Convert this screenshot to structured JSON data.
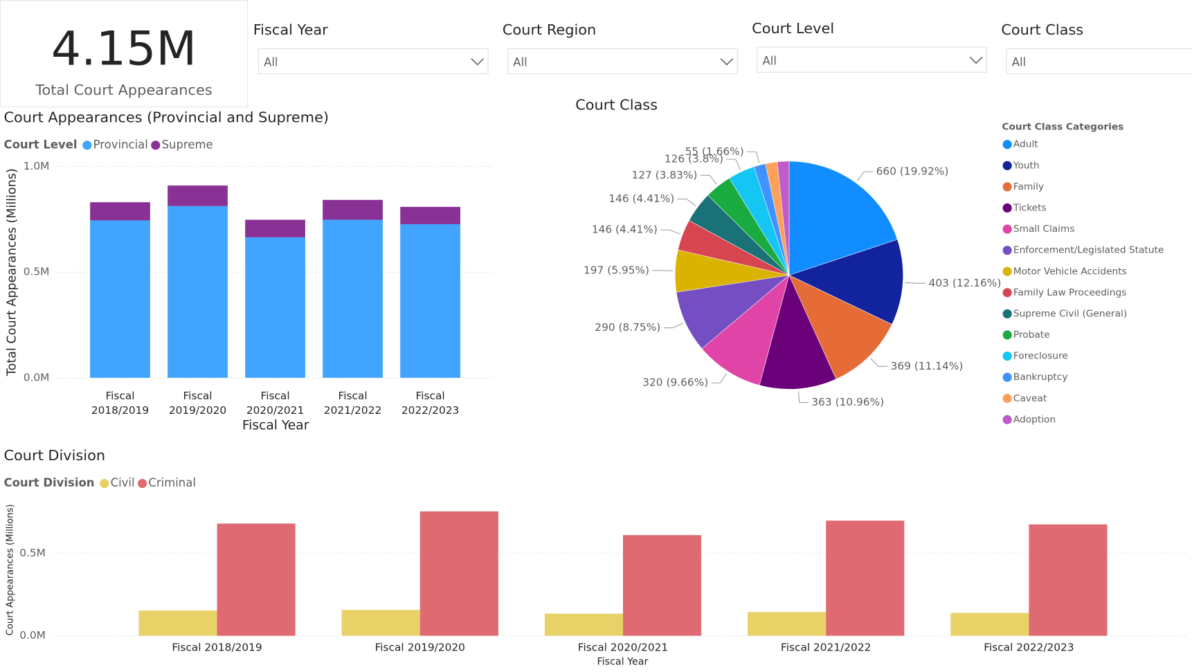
{
  "kpi": {
    "value": "4.15M",
    "label": "Total Court Appearances"
  },
  "slicers": [
    {
      "title": "Fiscal Year",
      "selection": "All"
    },
    {
      "title": "Court Region",
      "selection": "All"
    },
    {
      "title": "Court Level",
      "selection": "All"
    },
    {
      "title": "Court Class",
      "selection": "All"
    }
  ],
  "chart_data": [
    {
      "type": "bar",
      "stacked": true,
      "title": "Court Appearances (Provincial and Supreme)",
      "legend_title": "Court Level",
      "y_label": "Total Court Appearances (Millions)",
      "x_label": "Fiscal Year",
      "categories": [
        "Fiscal 2018/2019",
        "Fiscal 2019/2020",
        "Fiscal 2020/2021",
        "Fiscal 2021/2022",
        "Fiscal 2022/2023"
      ],
      "series": [
        {
          "name": "Provincial",
          "color": "#41a4ff",
          "values": [
            0.745,
            0.813,
            0.665,
            0.748,
            0.727
          ]
        },
        {
          "name": "Supreme",
          "color": "#8a3196",
          "values": [
            0.086,
            0.097,
            0.083,
            0.094,
            0.082
          ]
        }
      ],
      "ylim": [
        0,
        1.0
      ],
      "yticks": [
        {
          "value": 0,
          "label": "0.0M"
        },
        {
          "value": 0.5,
          "label": "0.5M"
        },
        {
          "value": 1.0,
          "label": "1.0M"
        }
      ],
      "grid": true
    },
    {
      "type": "pie",
      "title": "Court Class",
      "legend_title": "Court Class Categories",
      "categories": [
        "Adult",
        "Youth",
        "Family",
        "Tickets",
        "Small Claims",
        "Enforcement/Legislated Statute",
        "Motor Vehicle Accidents",
        "Family Law Proceedings",
        "Supreme Civil (General)",
        "Probate",
        "Foreclosure",
        "Bankruptcy",
        "Caveat",
        "Adoption"
      ],
      "values": [
        660,
        403,
        369,
        363,
        320,
        290,
        197,
        146,
        146,
        127,
        126,
        55,
        55,
        55
      ],
      "value_labels": [
        "660 (19.92%)",
        "403 (12.16%)",
        "369 (11.14%)",
        "363 (10.96%)",
        "320 (9.66%)",
        "290 (8.75%)",
        "197 (5.95%)",
        "146 (4.41%)",
        "146 (4.41%)",
        "127 (3.83%)",
        "126 (3.8%)",
        "55 (1.66%)",
        null,
        null
      ],
      "colors": [
        "#118dff",
        "#12239e",
        "#e66c37",
        "#6b007b",
        "#e044a7",
        "#744ec2",
        "#d9b300",
        "#d64550",
        "#197278",
        "#1aab40",
        "#15c6f4",
        "#4092ff",
        "#ffa058",
        "#be5dc9"
      ]
    },
    {
      "type": "bar",
      "stacked": false,
      "title": "Court Division",
      "legend_title": "Court Division",
      "y_label": "Court Appearances (Millions)",
      "x_label": "Fiscal Year",
      "categories": [
        "Fiscal 2018/2019",
        "Fiscal 2019/2020",
        "Fiscal 2020/2021",
        "Fiscal 2021/2022",
        "Fiscal 2022/2023"
      ],
      "series": [
        {
          "name": "Civil",
          "color": "#e8d166",
          "values": [
            0.153,
            0.157,
            0.134,
            0.144,
            0.139
          ]
        },
        {
          "name": "Criminal",
          "color": "#e06a72",
          "values": [
            0.681,
            0.755,
            0.611,
            0.699,
            0.676
          ]
        }
      ],
      "ylim": [
        0,
        0.8
      ],
      "yticks": [
        {
          "value": 0,
          "label": "0.0M"
        },
        {
          "value": 0.5,
          "label": "0.5M"
        }
      ],
      "grid": true
    }
  ]
}
